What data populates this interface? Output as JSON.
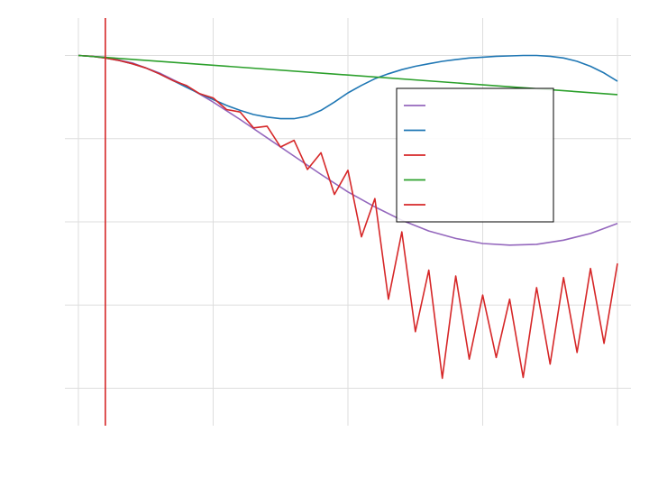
{
  "chart_data": {
    "type": "line",
    "title": "",
    "xlabel": "",
    "ylabel": "",
    "xlim": [
      -0.5,
      20.5
    ],
    "ylim": [
      -4.45,
      0.45
    ],
    "grid": true,
    "legend_position": "right",
    "vline": {
      "x": 1,
      "color": "#d62728"
    },
    "series": [
      {
        "color": "#9467bd",
        "x": [
          0,
          1,
          2,
          3,
          4,
          5,
          6,
          7,
          8,
          9,
          10,
          11,
          12,
          13,
          14,
          15,
          16,
          17,
          18,
          19,
          20
        ],
        "y": [
          0.0,
          -0.02,
          -0.09,
          -0.21,
          -0.37,
          -0.56,
          -0.77,
          -0.99,
          -1.21,
          -1.43,
          -1.64,
          -1.82,
          -1.98,
          -2.11,
          -2.2,
          -2.26,
          -2.28,
          -2.27,
          -2.22,
          -2.14,
          -2.02
        ]
      },
      {
        "color": "#1f77b4",
        "x": [
          0,
          0.5,
          1,
          1.5,
          2,
          2.5,
          3,
          3.5,
          4,
          4.5,
          5,
          5.5,
          6,
          6.5,
          7,
          7.5,
          8,
          8.5,
          9,
          9.5,
          10,
          10.5,
          11,
          11.5,
          12,
          12.5,
          13,
          13.5,
          14,
          14.5,
          15,
          15.5,
          16,
          16.5,
          17,
          17.5,
          18,
          18.5,
          19,
          19.5,
          20
        ],
        "y": [
          0.0,
          -0.01,
          -0.03,
          -0.06,
          -0.1,
          -0.15,
          -0.22,
          -0.3,
          -0.38,
          -0.46,
          -0.53,
          -0.6,
          -0.66,
          -0.71,
          -0.74,
          -0.76,
          -0.76,
          -0.73,
          -0.66,
          -0.56,
          -0.45,
          -0.36,
          -0.28,
          -0.22,
          -0.17,
          -0.13,
          -0.1,
          -0.07,
          -0.05,
          -0.03,
          -0.02,
          -0.01,
          -0.005,
          0.0,
          0.0,
          -0.01,
          -0.03,
          -0.07,
          -0.13,
          -0.21,
          -0.31
        ]
      },
      {
        "color": "#d62728",
        "x": [
          0,
          0.5,
          1,
          1.5,
          2,
          2.5,
          3,
          3.5,
          4,
          4.5,
          5,
          5.5,
          6,
          6.5,
          7,
          7.5,
          8,
          8.5,
          9,
          9.5,
          10,
          10.5,
          11,
          11.5,
          12,
          12.5,
          13,
          13.5,
          14,
          14.5,
          15,
          15.5,
          16,
          16.5,
          17,
          17.5,
          18,
          18.5,
          19,
          19.5,
          20
        ],
        "y": [
          0.0,
          -0.01,
          -0.03,
          -0.06,
          -0.1,
          -0.15,
          -0.22,
          -0.3,
          -0.36,
          -0.46,
          -0.51,
          -0.65,
          -0.68,
          -0.87,
          -0.85,
          -1.1,
          -1.02,
          -1.37,
          -1.17,
          -1.67,
          -1.38,
          -2.18,
          -1.72,
          -2.93,
          -2.12,
          -3.32,
          -2.58,
          -3.88,
          -2.65,
          -3.65,
          -2.88,
          -3.63,
          -2.93,
          -3.87,
          -2.79,
          -3.71,
          -2.67,
          -3.57,
          -2.56,
          -3.46,
          -2.5
        ]
      },
      {
        "color": "#2ca02c",
        "x": [
          0,
          20
        ],
        "y": [
          0.0,
          -0.47
        ]
      },
      {
        "color": "#d62728",
        "x": [],
        "y": []
      }
    ]
  }
}
